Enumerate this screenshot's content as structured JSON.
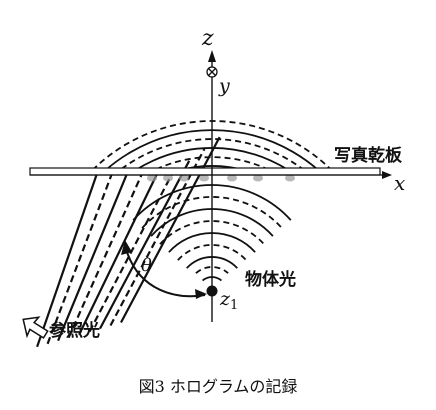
{
  "labels": {
    "z_axis": "z",
    "y_axis": "y",
    "x_axis": "x",
    "plate": "写真乾板",
    "object_light": "物体光",
    "reference_light": "参照光",
    "angle": "θ",
    "source_main": "z",
    "source_sub": "1"
  },
  "caption": "図3 ホログラムの記録",
  "colors": {
    "ink": "#111111",
    "plate_fill": "#ffffff",
    "interference": "#9a9a9a"
  },
  "icons": {
    "y_axis_symbol": "circle-cross-icon",
    "reference_arrow": "hollow-arrow-icon"
  }
}
